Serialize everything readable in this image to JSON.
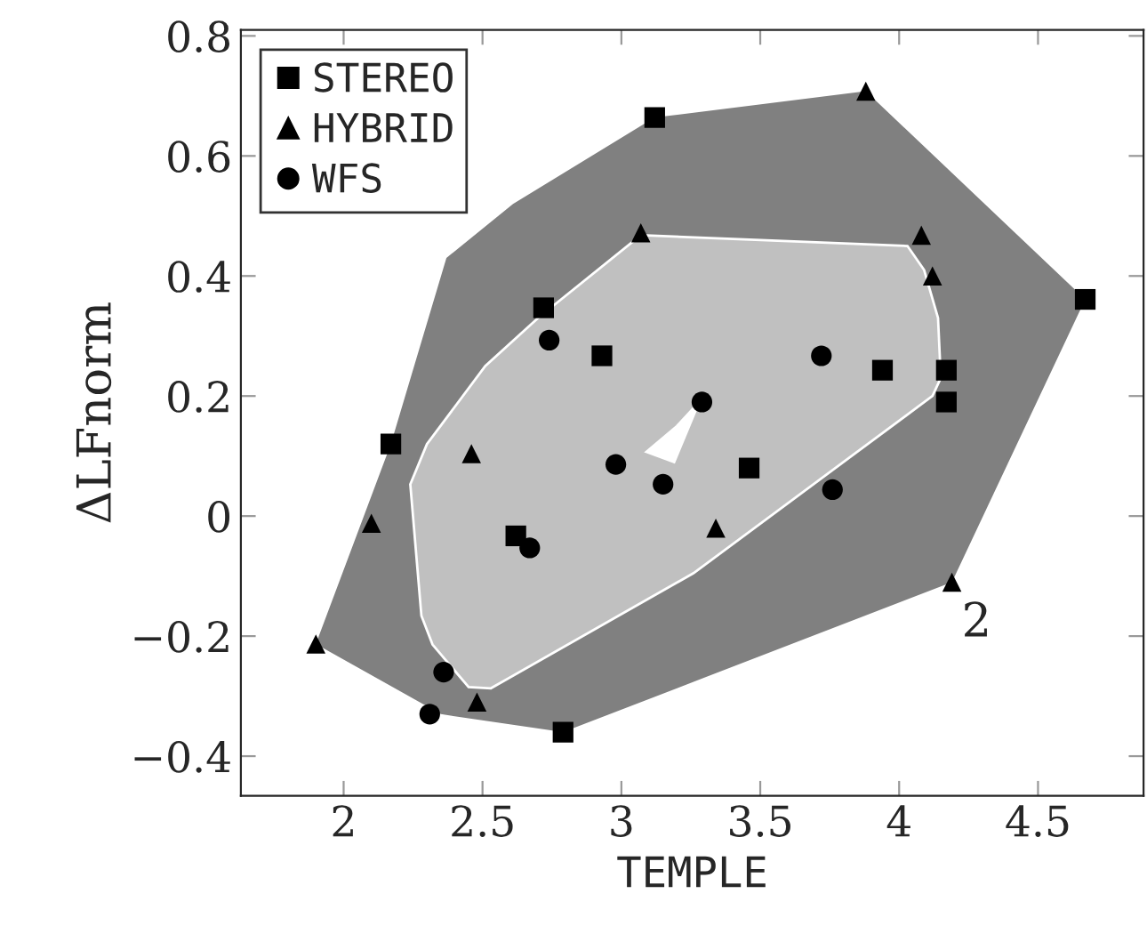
{
  "chart_data": {
    "type": "scatter",
    "xlabel": "TEMPLE",
    "ylabel": "ΔLFnorm",
    "xlim": [
      1.63,
      4.88
    ],
    "ylim": [
      -0.466,
      0.81
    ],
    "xticks": [
      2,
      2.5,
      3,
      3.5,
      4,
      4.5
    ],
    "yticks": [
      {
        "value": -0.4,
        "label": "−0.4"
      },
      {
        "value": -0.2,
        "label": "−0.2"
      },
      0,
      0.2,
      0.4,
      0.6,
      0.8
    ],
    "grid": false,
    "legend": "top left",
    "annotations": [
      "2"
    ],
    "series": [
      {
        "type": "area",
        "color": "#808080",
        "x": [
          1.9,
          2.35,
          2.79,
          4.19,
          4.67,
          3.88,
          3.12,
          2.61,
          2.37,
          2.17
        ],
        "values": [
          -0.213,
          -0.33,
          -0.36,
          -0.11,
          0.361,
          0.708,
          0.664,
          0.52,
          0.43,
          0.12
        ]
      },
      {
        "type": "area",
        "color": "#c0c0c0",
        "x": [
          3.07,
          4.03,
          4.09,
          4.14,
          4.15,
          4.12,
          3.26,
          2.53,
          2.45,
          2.32,
          2.28,
          2.24,
          2.3,
          2.51,
          2.7
        ],
        "values": [
          0.468,
          0.45,
          0.41,
          0.33,
          0.23,
          0.2,
          -0.095,
          -0.287,
          -0.285,
          -0.214,
          -0.166,
          0.053,
          0.12,
          0.25,
          0.33
        ]
      },
      {
        "type": "area",
        "color": "#ffffff",
        "x": [
          3.09,
          3.19,
          3.28,
          3.2
        ],
        "values": [
          0.107,
          0.09,
          0.19,
          0.15
        ]
      },
      {
        "name": "STEREO",
        "marker": "square",
        "color": "#000000",
        "x": [
          3.12,
          2.72,
          2.93,
          2.17,
          4.67,
          3.94,
          4.17,
          4.17,
          3.46,
          2.62,
          2.79
        ],
        "values": [
          0.664,
          0.347,
          0.267,
          0.12,
          0.361,
          0.243,
          0.243,
          0.19,
          0.08,
          -0.033,
          -0.36
        ]
      },
      {
        "name": "HYBRID",
        "marker": "triangle",
        "color": "#000000",
        "x": [
          3.88,
          4.08,
          4.12,
          3.07,
          2.46,
          2.1,
          1.9,
          2.48,
          3.34,
          4.19
        ],
        "values": [
          0.708,
          0.468,
          0.4,
          0.472,
          0.104,
          -0.012,
          -0.213,
          -0.31,
          -0.02,
          -0.11
        ]
      },
      {
        "name": "WFS",
        "marker": "circle",
        "color": "#000000",
        "x": [
          2.74,
          3.72,
          3.29,
          2.98,
          3.15,
          2.67,
          2.36,
          2.31,
          3.76
        ],
        "values": [
          0.293,
          0.267,
          0.19,
          0.086,
          0.053,
          -0.053,
          -0.26,
          -0.33,
          0.044
        ]
      }
    ]
  }
}
